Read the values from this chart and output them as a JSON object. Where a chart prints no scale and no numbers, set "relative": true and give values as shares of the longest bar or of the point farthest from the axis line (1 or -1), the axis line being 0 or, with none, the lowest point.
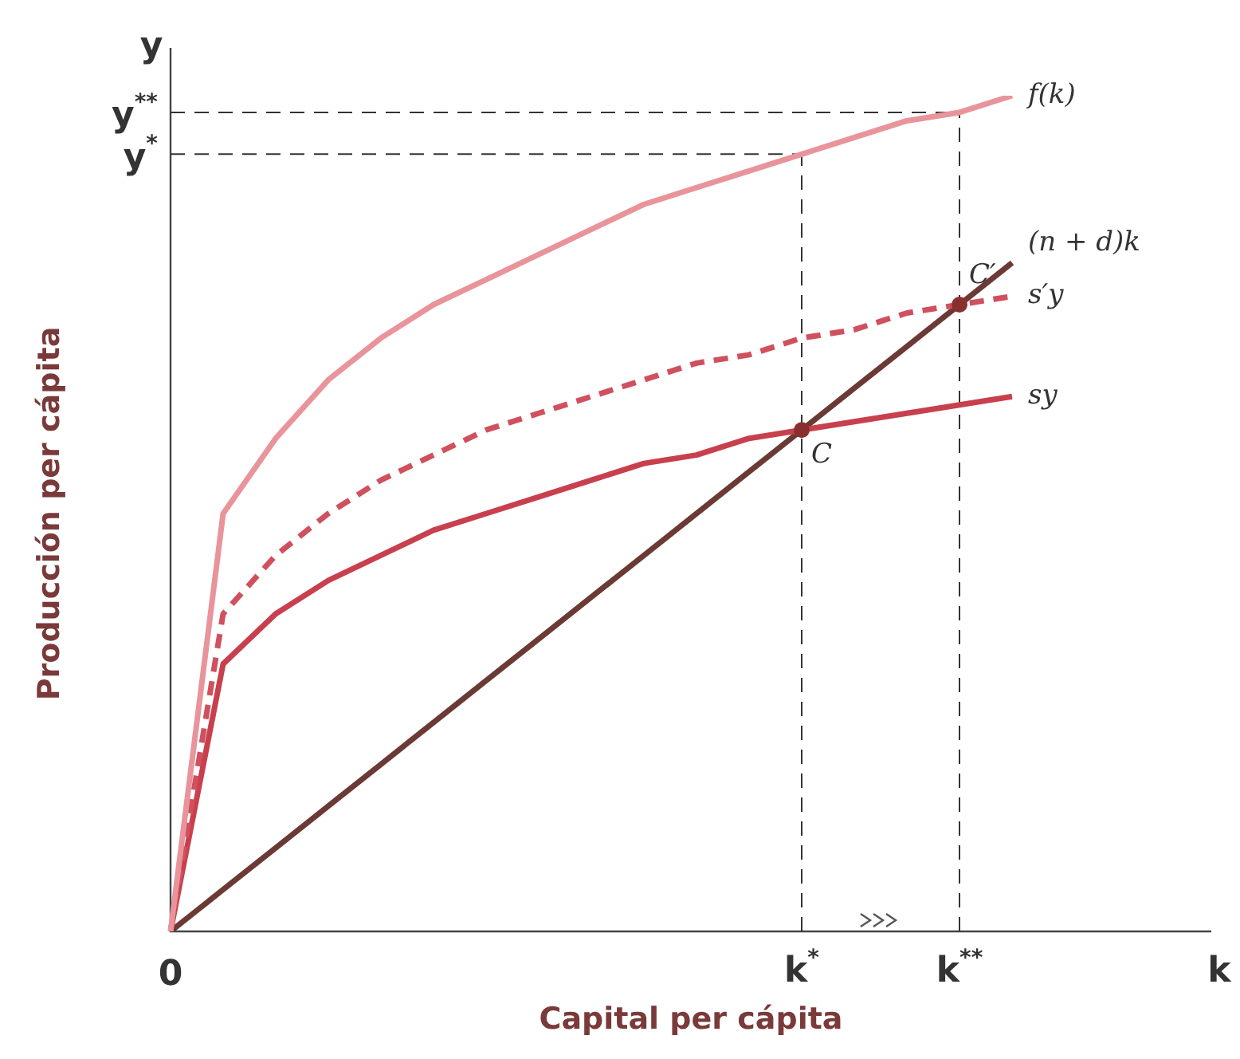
{
  "chart_data": {
    "type": "line",
    "relative": true,
    "xlabel": "Capital per cápita",
    "ylabel": "Producción per cápita",
    "categories": [
      null,
      null,
      null,
      null,
      null,
      null,
      null,
      null,
      null,
      null,
      null,
      null,
      "k$^{*}$",
      null,
      null,
      "k$^{**}$",
      null
    ],
    "series": [
      {
        "name": "f(k)",
        "color": "#e8949a",
        "values": [
          0,
          0.5,
          0.59,
          0.66,
          0.71,
          0.75,
          0.78,
          0.81,
          0.84,
          0.87,
          0.89,
          0.91,
          0.93,
          0.95,
          0.97,
          0.98,
          1.0
        ]
      },
      {
        "name": "s′y",
        "color": "#d0505e",
        "line_style": "dashed",
        "values": [
          0,
          0.38,
          0.45,
          0.5,
          0.54,
          0.57,
          0.6,
          0.62,
          0.64,
          0.66,
          0.68,
          0.69,
          0.71,
          0.72,
          0.74,
          0.75,
          0.76
        ]
      },
      {
        "name": "sy",
        "color": "#c8404e",
        "values": [
          0,
          0.32,
          0.38,
          0.42,
          0.45,
          0.48,
          0.5,
          0.52,
          0.54,
          0.56,
          0.57,
          0.59,
          0.6,
          0.61,
          0.62,
          0.63,
          0.64
        ]
      },
      {
        "name": "(n + d)k",
        "color": "#6b3a35",
        "values": [
          0,
          0.05,
          0.1,
          0.15,
          0.2,
          0.25,
          0.3,
          0.35,
          0.4,
          0.45,
          0.5,
          0.55,
          0.6,
          0.65,
          0.7,
          0.75,
          0.8
        ]
      }
    ],
    "marker": "none",
    "legend": false,
    "ref_lines": [
      {
        "axis": "x",
        "value": "k$^{*}$",
        "line_style": "dashed"
      },
      {
        "axis": "x",
        "value": "k$^{**}$",
        "line_style": "dashed"
      },
      {
        "axis": "y",
        "value": 0.93,
        "label": "y$^{*}$",
        "line_style": "dashed"
      },
      {
        "axis": "y",
        "value": 0.98,
        "label": "y$^{**}$",
        "line_style": "dashed"
      }
    ],
    "annotations": [
      "0",
      "y",
      "k",
      {
        "text": "C",
        "y": 0.6
      },
      {
        "text": "C′",
        "y": 0.75
      }
    ]
  }
}
